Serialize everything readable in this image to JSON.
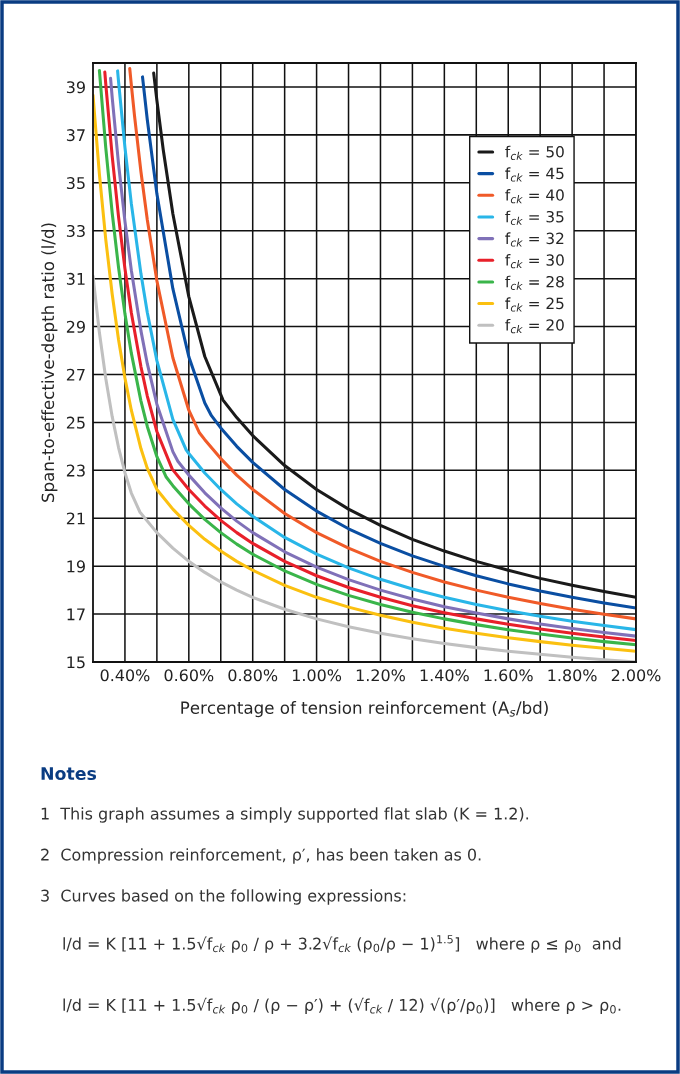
{
  "chart_data": {
    "type": "line",
    "xlabel": "Percentage of tension reinforcement (A$_{s}$/bd)",
    "ylabel": "Span-to-effective-depth ratio (l/d)",
    "xlim": [
      0.3,
      2.0
    ],
    "ylim": [
      15,
      40
    ],
    "xticks": [
      {
        "value": 0.4,
        "label": "0.40%"
      },
      {
        "value": 0.5,
        "label": null
      },
      {
        "value": 0.6,
        "label": "0.60%"
      },
      {
        "value": 0.7,
        "label": null
      },
      {
        "value": 0.8,
        "label": "0.80%"
      },
      {
        "value": 0.9,
        "label": null
      },
      {
        "value": 1.0,
        "label": "1.00%"
      },
      {
        "value": 1.1,
        "label": null
      },
      {
        "value": 1.2,
        "label": "1.20%"
      },
      {
        "value": 1.3,
        "label": null
      },
      {
        "value": 1.4,
        "label": "1.40%"
      },
      {
        "value": 1.5,
        "label": null
      },
      {
        "value": 1.6,
        "label": "1.60%"
      },
      {
        "value": 1.7,
        "label": null
      },
      {
        "value": 1.8,
        "label": "1.80%"
      },
      {
        "value": 1.9,
        "label": null
      },
      {
        "value": 2.0,
        "label": "2.00%"
      }
    ],
    "yticks": [
      15,
      17,
      19,
      21,
      23,
      25,
      27,
      29,
      31,
      33,
      35,
      37,
      39
    ],
    "grid": true,
    "legend": "top right",
    "marker": "none",
    "line_style": "solid",
    "series": [
      {
        "name": "f$_{ck}$ = 50",
        "color": "#1a1a1a",
        "x": [
          0.49,
          0.5,
          0.52,
          0.55,
          0.6,
          0.65,
          0.7071,
          0.75,
          0.8,
          0.9,
          1.0,
          1.1,
          1.2,
          1.3,
          1.4,
          1.5,
          1.6,
          1.7,
          1.8,
          1.9,
          2.0
        ],
        "values": [
          39.58,
          38.44,
          36.37,
          33.71,
          30.25,
          27.75,
          25.93,
          25.2,
          24.45,
          23.2,
          22.2,
          21.38,
          20.7,
          20.12,
          19.63,
          19.2,
          18.83,
          18.49,
          18.2,
          17.94,
          17.7
        ]
      },
      {
        "name": "f$_{ck}$ = 45",
        "color": "#0a4ea2",
        "x": [
          0.455,
          0.47,
          0.5,
          0.55,
          0.6,
          0.65,
          0.6708,
          0.7,
          0.75,
          0.8,
          0.9,
          1.0,
          1.1,
          1.2,
          1.3,
          1.4,
          1.5,
          1.6,
          1.7,
          1.8,
          1.9,
          2.0
        ],
        "values": [
          39.42,
          37.63,
          34.54,
          30.58,
          27.74,
          25.81,
          25.28,
          24.77,
          24.0,
          23.33,
          22.2,
          21.3,
          20.56,
          19.95,
          19.43,
          18.99,
          18.6,
          18.26,
          17.96,
          17.7,
          17.46,
          17.25
        ]
      },
      {
        "name": "f$_{ck}$ = 40",
        "color": "#f05a28",
        "x": [
          0.415,
          0.42,
          0.43,
          0.45,
          0.47,
          0.5,
          0.55,
          0.6,
          0.6325,
          0.65,
          0.7,
          0.75,
          0.8,
          0.9,
          1.0,
          1.1,
          1.2,
          1.3,
          1.4,
          1.5,
          1.6,
          1.7,
          1.8,
          1.9,
          2.0
        ],
        "values": [
          39.77,
          39.09,
          37.79,
          35.47,
          33.46,
          30.91,
          27.7,
          25.51,
          24.58,
          24.28,
          23.49,
          22.8,
          22.2,
          21.2,
          20.4,
          19.75,
          19.2,
          18.74,
          18.34,
          18.0,
          17.7,
          17.44,
          17.2,
          16.99,
          16.8
        ]
      },
      {
        "name": "f$_{ck}$ = 35",
        "color": "#29b6e8",
        "x": [
          0.377,
          0.38,
          0.4,
          0.42,
          0.45,
          0.47,
          0.5,
          0.55,
          0.5916,
          0.6,
          0.65,
          0.7,
          0.75,
          0.8,
          0.9,
          1.0,
          1.1,
          1.2,
          1.3,
          1.4,
          1.5,
          1.6,
          1.7,
          1.8,
          1.9,
          2.0
        ],
        "values": [
          39.67,
          39.22,
          36.48,
          34.13,
          31.21,
          29.59,
          27.58,
          25.13,
          23.85,
          23.7,
          22.89,
          22.2,
          21.6,
          21.08,
          20.2,
          19.5,
          18.93,
          18.45,
          18.05,
          17.7,
          17.4,
          17.14,
          16.91,
          16.7,
          16.52,
          16.35
        ]
      },
      {
        "name": "f$_{ck}$ = 32",
        "color": "#8071b8",
        "x": [
          0.355,
          0.36,
          0.38,
          0.4,
          0.42,
          0.45,
          0.47,
          0.5,
          0.55,
          0.5657,
          0.6,
          0.65,
          0.7,
          0.75,
          0.8,
          0.9,
          1.0,
          1.1,
          1.2,
          1.3,
          1.4,
          1.5,
          1.6,
          1.7,
          1.8,
          1.9,
          2.0
        ],
        "values": [
          39.36,
          38.58,
          35.78,
          33.39,
          31.35,
          28.83,
          27.45,
          25.76,
          23.78,
          23.38,
          22.8,
          22.06,
          21.43,
          20.88,
          20.4,
          19.6,
          18.96,
          18.44,
          18.0,
          17.63,
          17.31,
          17.04,
          16.8,
          16.59,
          16.4,
          16.23,
          16.08
        ]
      },
      {
        "name": "f$_{ck}$ = 30",
        "color": "#e8202a",
        "x": [
          0.337,
          0.34,
          0.36,
          0.38,
          0.4,
          0.42,
          0.45,
          0.47,
          0.5,
          0.5477,
          0.55,
          0.6,
          0.65,
          0.7,
          0.75,
          0.8,
          0.9,
          1.0,
          1.1,
          1.2,
          1.3,
          1.4,
          1.5,
          1.6,
          1.7,
          1.8,
          1.9,
          2.0
        ],
        "values": [
          39.62,
          39.12,
          36.12,
          33.58,
          31.42,
          29.58,
          27.33,
          26.1,
          24.62,
          23.06,
          23.02,
          22.2,
          21.51,
          20.91,
          20.4,
          19.95,
          19.2,
          18.6,
          18.11,
          17.7,
          17.35,
          17.06,
          16.8,
          16.58,
          16.38,
          16.2,
          16.04,
          15.9
        ]
      },
      {
        "name": "f$_{ck}$ = 28",
        "color": "#3ab54a",
        "x": [
          0.32,
          0.34,
          0.36,
          0.38,
          0.4,
          0.42,
          0.45,
          0.47,
          0.5,
          0.5292,
          0.55,
          0.6,
          0.65,
          0.7,
          0.75,
          0.8,
          0.9,
          1.0,
          1.1,
          1.2,
          1.3,
          1.4,
          1.5,
          1.6,
          1.7,
          1.8,
          1.9,
          2.0
        ],
        "values": [
          39.69,
          36.46,
          33.75,
          31.46,
          29.53,
          27.89,
          25.9,
          24.83,
          23.57,
          22.72,
          22.36,
          21.6,
          20.95,
          20.4,
          19.92,
          19.5,
          18.8,
          18.24,
          17.78,
          17.4,
          17.08,
          16.8,
          16.56,
          16.35,
          16.17,
          16.0,
          15.85,
          15.72
        ]
      },
      {
        "name": "f$_{ck}$ = 25",
        "color": "#fbc010",
        "x": [
          0.3,
          0.32,
          0.34,
          0.36,
          0.38,
          0.4,
          0.42,
          0.45,
          0.47,
          0.5,
          0.55,
          0.6,
          0.65,
          0.7,
          0.75,
          0.8,
          0.9,
          1.0,
          1.1,
          1.2,
          1.3,
          1.4,
          1.5,
          1.6,
          1.7,
          1.8,
          1.9,
          2.0
        ],
        "values": [
          38.65,
          35.36,
          32.63,
          30.36,
          28.45,
          26.85,
          25.51,
          23.91,
          23.08,
          22.2,
          21.38,
          20.7,
          20.12,
          19.63,
          19.2,
          18.83,
          18.2,
          17.7,
          17.29,
          16.95,
          16.66,
          16.41,
          16.2,
          16.01,
          15.85,
          15.7,
          15.57,
          15.45
        ]
      },
      {
        "name": "f$_{ck}$ = 20",
        "color": "#c0c0c0",
        "x": [
          0.3,
          0.32,
          0.34,
          0.36,
          0.38,
          0.4,
          0.42,
          0.4472,
          0.5,
          0.55,
          0.6,
          0.65,
          0.7,
          0.75,
          0.8,
          0.9,
          1.0,
          1.1,
          1.2,
          1.3,
          1.4,
          1.5,
          1.6,
          1.7,
          1.8,
          1.9,
          2.0
        ],
        "values": [
          31.1,
          28.75,
          26.83,
          25.25,
          23.95,
          22.9,
          22.05,
          21.25,
          20.4,
          19.75,
          19.2,
          18.74,
          18.34,
          18.0,
          17.7,
          17.2,
          16.8,
          16.47,
          16.2,
          15.97,
          15.77,
          15.6,
          15.45,
          15.32,
          15.2,
          15.09,
          15.0
        ]
      }
    ],
    "annotations": [
      "Notes",
      "1  This graph assumes a simply supported flat slab (K = 1.2).",
      "2  Compression reinforcement, ρ′, has been taken as 0.",
      "3  Curves based on the following expressions:",
      "l/d = K [11 + 1.5√f$_{ck}$ ρ$_{0}$ / ρ + 3.2√f$_{ck}$ (ρ$_{0}$/ρ − 1)$^{1.5}$]   where ρ ≤ ρ$_{0}$  and",
      "l/d = K [11 + 1.5√f$_{ck}$ ρ$_{0}$ / (ρ − ρ′) + (√f$_{ck}$ / 12) √(ρ′/ρ$_{0}$)]   where ρ > ρ$_{0}$."
    ]
  }
}
